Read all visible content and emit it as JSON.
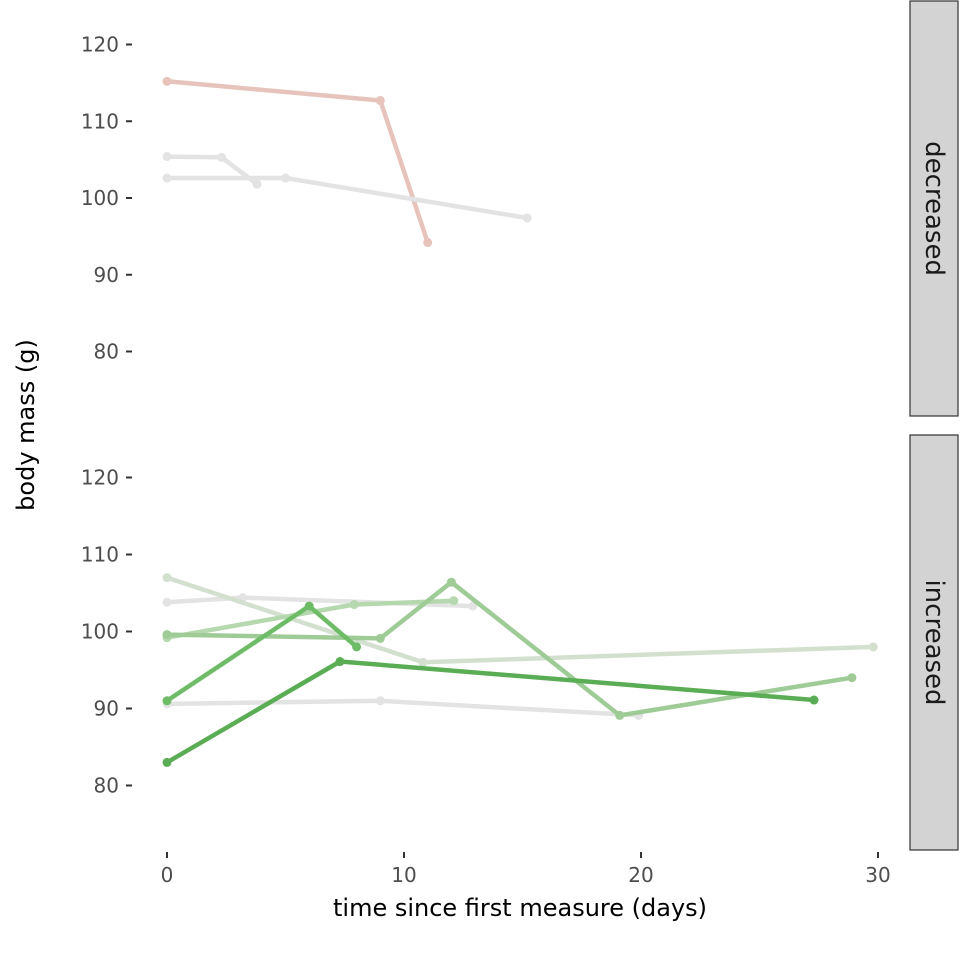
{
  "chart_data": {
    "type": "line",
    "xlabel": "time since first measure (days)",
    "ylabel": "body mass (g)",
    "xlim": [
      0,
      30
    ],
    "ylim": [
      72,
      124
    ],
    "x_ticks": [
      "0",
      "10",
      "20",
      "30"
    ],
    "y_ticks": [
      "80",
      "90",
      "100",
      "110",
      "120"
    ],
    "grid": false,
    "legend": "none",
    "facets": [
      {
        "label": "decreased",
        "series": [
          {
            "color": "#e6c4bb",
            "points": [
              [
                0,
                115.2
              ],
              [
                9,
                112.7
              ],
              [
                11,
                94.2
              ]
            ]
          },
          {
            "color": "#e3e3e3",
            "points": [
              [
                0,
                105.4
              ],
              [
                2.3,
                105.3
              ],
              [
                3.8,
                101.8
              ]
            ]
          },
          {
            "color": "#e3e3e3",
            "points": [
              [
                0,
                102.6
              ],
              [
                5,
                102.6
              ],
              [
                15.2,
                97.4
              ]
            ]
          }
        ]
      },
      {
        "label": "increased",
        "series": [
          {
            "color": "#e3e3e3",
            "points": [
              [
                0,
                90.6
              ],
              [
                9,
                91.0
              ],
              [
                19.9,
                89.1
              ]
            ]
          },
          {
            "color": "#e3e3e3",
            "points": [
              [
                0,
                103.8
              ],
              [
                3.2,
                104.4
              ],
              [
                12.9,
                103.3
              ]
            ]
          },
          {
            "color": "#d3e0cf",
            "points": [
              [
                0,
                107.0
              ],
              [
                10.8,
                96.0
              ],
              [
                29.8,
                98.0
              ]
            ]
          },
          {
            "color": "#b5d8ae",
            "points": [
              [
                0,
                99.2
              ],
              [
                7.9,
                103.5
              ],
              [
                12.1,
                104.0
              ]
            ]
          },
          {
            "color": "#9fcc96",
            "points": [
              [
                0,
                99.6
              ],
              [
                9,
                99.1
              ],
              [
                12,
                106.4
              ],
              [
                19.1,
                89.1
              ],
              [
                28.9,
                94.0
              ]
            ]
          },
          {
            "color": "#6fbc68",
            "points": [
              [
                0,
                91.0
              ],
              [
                6,
                103.3
              ],
              [
                8,
                98.0
              ]
            ]
          },
          {
            "color": "#5aad54",
            "points": [
              [
                0,
                83.0
              ],
              [
                7.3,
                96.1
              ],
              [
                27.3,
                91.1
              ]
            ]
          }
        ]
      }
    ]
  }
}
